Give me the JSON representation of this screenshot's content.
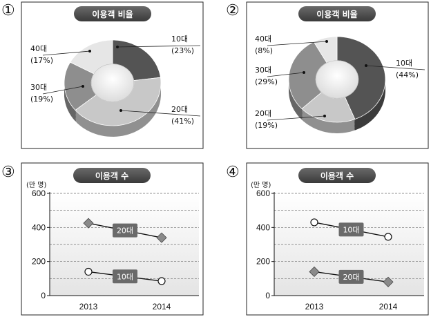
{
  "figures": [
    {
      "number": "①",
      "title": "이용객 비율"
    },
    {
      "number": "②",
      "title": "이용객 비율"
    },
    {
      "number": "③",
      "title": "이용객 수"
    },
    {
      "number": "④",
      "title": "이용객 수"
    }
  ],
  "chart_data": [
    {
      "type": "pie",
      "title": "이용객 비율",
      "categories": [
        "10대",
        "20대",
        "30대",
        "40대"
      ],
      "values": [
        23,
        41,
        19,
        17
      ],
      "labels": [
        "(23%)",
        "(41%)",
        "(19%)",
        "(17%)"
      ],
      "colors": [
        "#545454",
        "#c8c8c8",
        "#8e8e8e",
        "#e6e6e6"
      ]
    },
    {
      "type": "pie",
      "title": "이용객 비율",
      "categories": [
        "10대",
        "20대",
        "30대",
        "40대"
      ],
      "values": [
        44,
        19,
        29,
        8
      ],
      "labels": [
        "(44%)",
        "(19%)",
        "(29%)",
        "(8%)"
      ],
      "colors": [
        "#545454",
        "#c8c8c8",
        "#8e8e8e",
        "#e6e6e6"
      ]
    },
    {
      "type": "line",
      "title": "이용객 수",
      "ylabel": "(만 명)",
      "categories": [
        "2013",
        "2014"
      ],
      "yticks": [
        "0",
        "200",
        "400",
        "600"
      ],
      "ylim": [
        0,
        600
      ],
      "series": [
        {
          "name": "20대",
          "values": [
            425,
            340
          ],
          "marker": "diamond"
        },
        {
          "name": "10대",
          "values": [
            140,
            85
          ],
          "marker": "circle"
        }
      ]
    },
    {
      "type": "line",
      "title": "이용객 수",
      "ylabel": "(만 명)",
      "categories": [
        "2013",
        "2014"
      ],
      "yticks": [
        "0",
        "200",
        "400",
        "600"
      ],
      "ylim": [
        0,
        600
      ],
      "series": [
        {
          "name": "10대",
          "values": [
            430,
            345
          ],
          "marker": "circle"
        },
        {
          "name": "20대",
          "values": [
            140,
            80
          ],
          "marker": "diamond"
        }
      ]
    }
  ]
}
